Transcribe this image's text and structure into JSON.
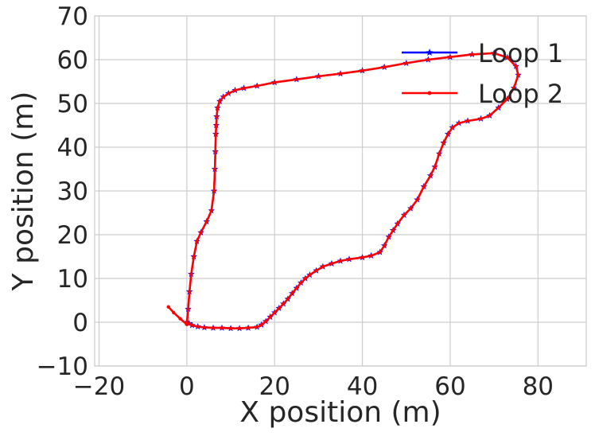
{
  "chart_data": {
    "type": "line",
    "xlabel": "X position (m)",
    "ylabel": "Y position (m)",
    "xlim": [
      -21,
      91
    ],
    "ylim": [
      -10,
      70
    ],
    "xticks": [
      -20,
      0,
      20,
      40,
      60,
      80
    ],
    "yticks": [
      -10,
      0,
      10,
      20,
      30,
      40,
      50,
      60,
      70
    ],
    "xtick_labels": [
      "−20",
      "0",
      "20",
      "40",
      "60",
      "80"
    ],
    "ytick_labels": [
      "−10",
      "0",
      "10",
      "20",
      "30",
      "40",
      "50",
      "60",
      "70"
    ],
    "grid": true,
    "legend_position": "top-right",
    "series": [
      {
        "name": "Loop 1",
        "color": "#0000ff",
        "marker": "star",
        "x": [
          0,
          0.3,
          0.6,
          1,
          1.6,
          2.3,
          3.2,
          4.5,
          5.6,
          6.2,
          6.4,
          6.5,
          6.6,
          6.7,
          6.8,
          7.0,
          7.5,
          8.3,
          9.5,
          11,
          13,
          16,
          20,
          25,
          30,
          35,
          40,
          45,
          50,
          55,
          60,
          65,
          70,
          73,
          75,
          75.5,
          74.5,
          73,
          71,
          69,
          67,
          64,
          62,
          60.5,
          59.5,
          58.5,
          57.5,
          56.5,
          55.5,
          54,
          52.5,
          51,
          49.5,
          48,
          47,
          46,
          45,
          44,
          42,
          40,
          37,
          35,
          33,
          31,
          29.5,
          28,
          27,
          26,
          25,
          24,
          23,
          22,
          21,
          20,
          19,
          18,
          17,
          16,
          14,
          12,
          10,
          8,
          6,
          4,
          2.5,
          1.2,
          0.5,
          0
        ],
        "y": [
          0,
          3,
          7,
          11,
          15,
          18.5,
          20.5,
          23,
          25.5,
          30,
          35,
          39,
          43,
          45,
          47,
          49,
          50.5,
          51.5,
          52.3,
          53,
          53.5,
          54,
          54.8,
          55.5,
          56.2,
          56.8,
          57.5,
          58.3,
          59.2,
          60,
          60.6,
          61.2,
          61.5,
          60.5,
          58.5,
          56.5,
          53.5,
          51,
          49,
          47.2,
          46.5,
          46,
          45.5,
          44.5,
          43,
          41,
          38.5,
          35.5,
          33.5,
          31,
          28,
          26,
          24.5,
          22.5,
          21,
          19.5,
          17.5,
          16,
          15.2,
          14.8,
          14.4,
          14,
          13.4,
          12.7,
          11.8,
          10.8,
          10,
          9,
          7.8,
          6.6,
          5.3,
          4.2,
          3.2,
          2.2,
          1.2,
          0.2,
          -0.6,
          -1.1,
          -1.3,
          -1.4,
          -1.4,
          -1.3,
          -1.3,
          -1.2,
          -1.0,
          -0.7,
          -0.3,
          0
        ]
      },
      {
        "name": "Loop 2",
        "color": "#ff0000",
        "marker": "dot",
        "x": [
          -4.2,
          -3,
          -1.5,
          0,
          0.3,
          0.6,
          1,
          1.6,
          2.3,
          3.2,
          4.5,
          5.6,
          6.2,
          6.4,
          6.5,
          6.6,
          6.7,
          6.8,
          7.0,
          7.5,
          8.3,
          9.5,
          11,
          13,
          16,
          20,
          25,
          30,
          35,
          40,
          45,
          50,
          55,
          60,
          65,
          70,
          73,
          75,
          75.5,
          74.5,
          73,
          71,
          69,
          67,
          64,
          62,
          60.5,
          59.5,
          58.5,
          57.5,
          56.5,
          55.5,
          54,
          52.5,
          51,
          49.5,
          48,
          47,
          46,
          45,
          44,
          42,
          40,
          37,
          35,
          33,
          31,
          29.5,
          28,
          27,
          26,
          25,
          24,
          23,
          22,
          21,
          20,
          19,
          18,
          17,
          16,
          14,
          12,
          10,
          8,
          6,
          4,
          2.5,
          1.2,
          0.5
        ],
        "y": [
          3.5,
          2.2,
          0.8,
          -0.5,
          3,
          7,
          11,
          15,
          18.5,
          20.5,
          23,
          25.5,
          30,
          35,
          39,
          43,
          45,
          47,
          49,
          50.5,
          51.5,
          52.3,
          53,
          53.5,
          54,
          54.8,
          55.5,
          56.2,
          56.8,
          57.5,
          58.3,
          59.2,
          60,
          60.6,
          61.2,
          61.5,
          60.5,
          58.5,
          56.5,
          53.5,
          51,
          49,
          47.2,
          46.5,
          46,
          45.5,
          44.5,
          43,
          41,
          38.5,
          35.5,
          33.5,
          31,
          28,
          26,
          24.5,
          22.5,
          21,
          19.5,
          17.5,
          16,
          15.2,
          14.8,
          14.4,
          14,
          13.4,
          12.7,
          11.8,
          10.8,
          10,
          9,
          7.8,
          6.6,
          5.3,
          4.2,
          3.2,
          2.2,
          1.2,
          0.2,
          -0.6,
          -1.1,
          -1.3,
          -1.4,
          -1.4,
          -1.3,
          -1.3,
          -1.2,
          -1.0,
          -0.7,
          -0.3
        ]
      }
    ]
  }
}
